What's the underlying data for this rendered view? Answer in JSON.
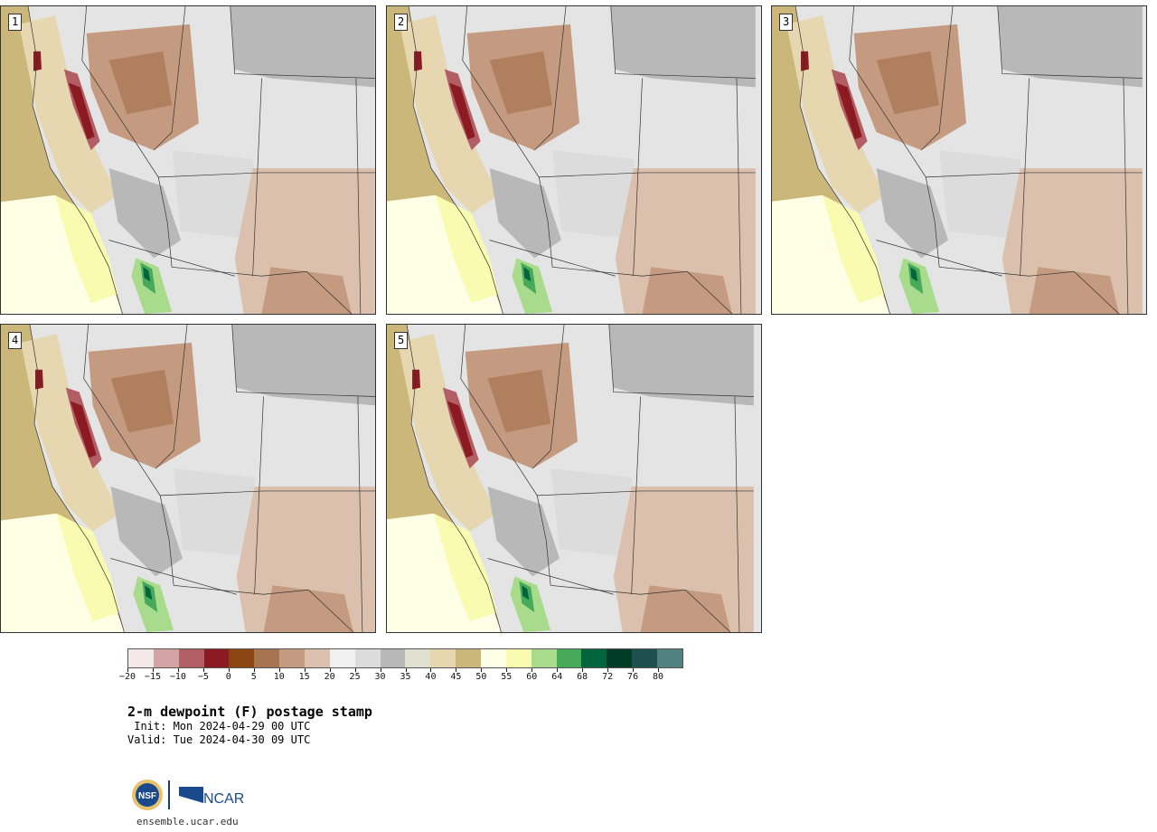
{
  "panels": [
    {
      "label": "1"
    },
    {
      "label": "2"
    },
    {
      "label": "3"
    },
    {
      "label": "4"
    },
    {
      "label": "5"
    }
  ],
  "colorbar": {
    "colors": [
      "#f5e8e8",
      "#d4a3a6",
      "#b25e64",
      "#8b1a22",
      "#8b4513",
      "#a87350",
      "#c49a80",
      "#dcc0ae",
      "#f0f0f0",
      "#dcdcdc",
      "#b8b8b8",
      "#e0e0d0",
      "#e6d7b0",
      "#ccb77a",
      "#ffffe6",
      "#f8fbb0",
      "#a8dc8c",
      "#46aa5a",
      "#00643c",
      "#003c28",
      "#1e5050",
      "#508080"
    ],
    "tick_labels": [
      "−20",
      "−15",
      "−10",
      "−5",
      "0",
      "5",
      "10",
      "15",
      "20",
      "25",
      "30",
      "35",
      "40",
      "45",
      "50",
      "55",
      "60",
      "64",
      "68",
      "72",
      "76",
      "80"
    ]
  },
  "title": "2-m dewpoint (F) postage stamp",
  "init": " Init: Mon 2024-04-29 00 UTC",
  "valid": "Valid: Tue 2024-04-30 09 UTC",
  "logo": {
    "nsf": "NSF",
    "ncar": "NCAR"
  },
  "url": "ensemble.ucar.edu"
}
